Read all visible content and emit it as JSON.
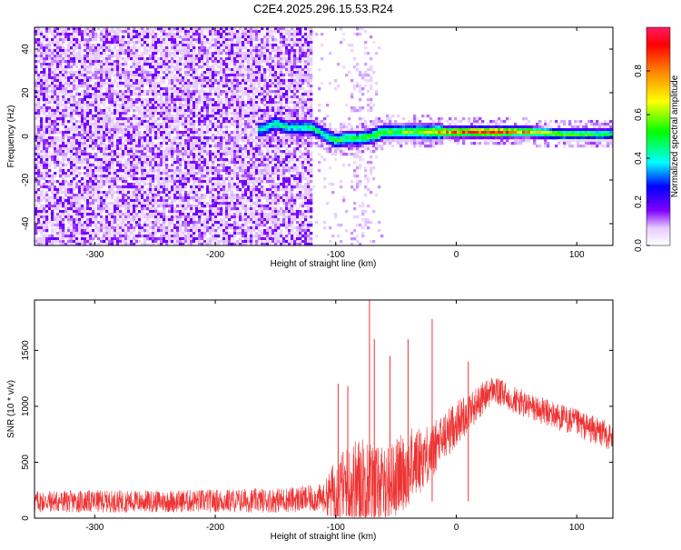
{
  "title": "C2E4.2025.296.15.53.R24",
  "chart_data": [
    {
      "type": "heatmap",
      "xlabel": "Height of straight line (km)",
      "ylabel": "Frequency (Hz)",
      "xlim": [
        -350,
        130
      ],
      "ylim": [
        -50,
        50
      ],
      "x_ticks": [
        -300,
        -200,
        -100,
        0,
        100
      ],
      "x_tick_labels": [
        "-300",
        "-200",
        "-100",
        "0",
        "100"
      ],
      "y_ticks": [
        -40,
        -20,
        0,
        20,
        40
      ],
      "y_tick_labels": [
        "-40",
        "-20",
        "0",
        "20",
        "40"
      ],
      "colorbar": {
        "label": "Normalized spectral amplitude",
        "range": [
          0,
          1
        ],
        "ticks": [
          0.0,
          0.2,
          0.4,
          0.6,
          0.8
        ],
        "tick_labels": [
          "0.0",
          "0.2",
          "0.4",
          "0.6",
          "0.8"
        ],
        "colormap": [
          "#ffffff",
          "#e6ccff",
          "#8000ff",
          "#0000ff",
          "#00ffff",
          "#00ff00",
          "#ffff00",
          "#ff8000",
          "#ff0000",
          "#ff1a66"
        ]
      },
      "noise_region_x": [
        -350,
        -120
      ],
      "ridge": [
        {
          "x": -160,
          "y": 3,
          "amp": 0.45
        },
        {
          "x": -150,
          "y": 6,
          "amp": 0.5
        },
        {
          "x": -140,
          "y": 4,
          "amp": 0.45
        },
        {
          "x": -120,
          "y": 4,
          "amp": 0.5
        },
        {
          "x": -110,
          "y": 1,
          "amp": 0.5
        },
        {
          "x": -100,
          "y": -2,
          "amp": 0.55
        },
        {
          "x": -90,
          "y": -1,
          "amp": 0.55
        },
        {
          "x": -80,
          "y": -1,
          "amp": 0.55
        },
        {
          "x": -70,
          "y": 0,
          "amp": 0.6
        },
        {
          "x": -60,
          "y": 2,
          "amp": 0.6
        },
        {
          "x": -50,
          "y": 2,
          "amp": 0.6
        },
        {
          "x": -40,
          "y": 2,
          "amp": 0.6
        },
        {
          "x": -20,
          "y": 2,
          "amp": 0.7
        },
        {
          "x": 0,
          "y": 2,
          "amp": 0.85
        },
        {
          "x": 30,
          "y": 2,
          "amp": 0.95
        },
        {
          "x": 60,
          "y": 2,
          "amp": 0.75
        },
        {
          "x": 90,
          "y": 1,
          "amp": 0.6
        },
        {
          "x": 130,
          "y": 1,
          "amp": 0.55
        }
      ]
    },
    {
      "type": "line",
      "xlabel": "Height of straight line (km)",
      "ylabel": "SNR (10 * v/v)",
      "xlim": [
        -350,
        130
      ],
      "ylim": [
        0,
        1950
      ],
      "x_ticks": [
        -300,
        -200,
        -100,
        0,
        100
      ],
      "x_tick_labels": [
        "-300",
        "-200",
        "-100",
        "0",
        "100"
      ],
      "y_ticks": [
        0,
        500,
        1000,
        1500
      ],
      "y_tick_labels": [
        "0",
        "500",
        "1000",
        "1500"
      ],
      "color": "#ee3333",
      "envelope": [
        {
          "x": -350,
          "base": 150,
          "spread": 200
        },
        {
          "x": -250,
          "base": 150,
          "spread": 200
        },
        {
          "x": -150,
          "base": 160,
          "spread": 220
        },
        {
          "x": -110,
          "base": 180,
          "spread": 250
        },
        {
          "x": -100,
          "base": 250,
          "spread": 600
        },
        {
          "x": -80,
          "base": 300,
          "spread": 900
        },
        {
          "x": -60,
          "base": 280,
          "spread": 700
        },
        {
          "x": -40,
          "base": 450,
          "spread": 700
        },
        {
          "x": -20,
          "base": 600,
          "spread": 500
        },
        {
          "x": 0,
          "base": 850,
          "spread": 400
        },
        {
          "x": 30,
          "base": 1150,
          "spread": 250
        },
        {
          "x": 60,
          "base": 1000,
          "spread": 250
        },
        {
          "x": 100,
          "base": 850,
          "spread": 250
        },
        {
          "x": 130,
          "base": 720,
          "spread": 250
        }
      ],
      "spikes": [
        {
          "x": -98,
          "y": 1200
        },
        {
          "x": -90,
          "y": 1180
        },
        {
          "x": -72,
          "y": 1950
        },
        {
          "x": -68,
          "y": 1600
        },
        {
          "x": -55,
          "y": 1450
        },
        {
          "x": -40,
          "y": 1600
        },
        {
          "x": -20,
          "y": 1780
        },
        {
          "x": 10,
          "y": 1400
        }
      ]
    }
  ]
}
